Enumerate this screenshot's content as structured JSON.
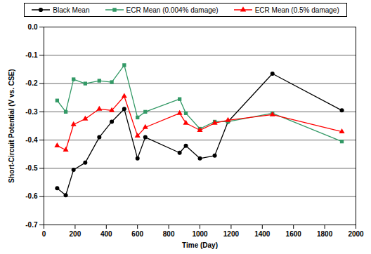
{
  "chart_data": {
    "type": "line",
    "x_label": "Time (Day)",
    "y_label": "Short-Circuit Potential (V vs. CSE)",
    "x": [
      85,
      140,
      190,
      265,
      355,
      435,
      515,
      600,
      650,
      870,
      910,
      1000,
      1095,
      1180,
      1465,
      1910
    ],
    "series": [
      {
        "name": "Black Mean",
        "color": "#000000",
        "marker": "circle",
        "values": [
          -0.57,
          -0.595,
          -0.505,
          -0.48,
          -0.39,
          -0.335,
          -0.29,
          -0.465,
          -0.39,
          -0.445,
          -0.42,
          -0.465,
          -0.455,
          -0.335,
          -0.165,
          -0.295
        ]
      },
      {
        "name": "ECR Mean (0.004% damage)",
        "color": "#339966",
        "marker": "square",
        "values": [
          -0.26,
          -0.3,
          -0.185,
          -0.2,
          -0.19,
          -0.195,
          -0.135,
          -0.32,
          -0.3,
          -0.255,
          -0.305,
          -0.36,
          -0.335,
          -0.335,
          -0.305,
          -0.405
        ]
      },
      {
        "name": "ECR Mean (0.5% damage)",
        "color": "#ff0000",
        "marker": "triangle",
        "values": [
          -0.42,
          -0.435,
          -0.345,
          -0.325,
          -0.29,
          -0.295,
          -0.245,
          -0.385,
          -0.355,
          -0.305,
          -0.34,
          -0.365,
          -0.34,
          -0.33,
          -0.31,
          -0.37
        ]
      }
    ],
    "xlim": [
      0,
      2000
    ],
    "xticks": [
      0,
      200,
      400,
      600,
      800,
      1000,
      1200,
      1400,
      1600,
      1800,
      2000
    ],
    "ylim": [
      -0.7,
      0
    ],
    "yticks": [
      {
        "value": 0,
        "label": "0.0"
      },
      -0.1,
      -0.2,
      -0.3,
      -0.4,
      -0.5,
      -0.6,
      -0.7
    ],
    "grid": true,
    "legend": "top"
  }
}
